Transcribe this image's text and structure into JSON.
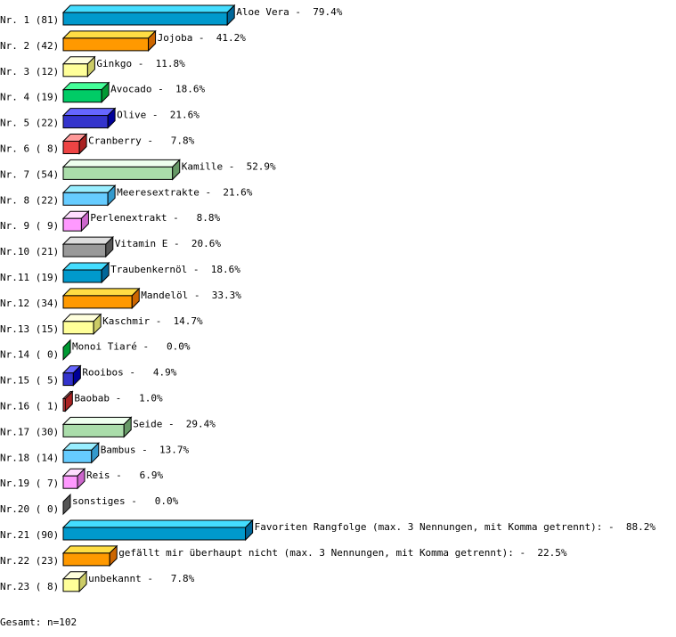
{
  "chart_data": {
    "type": "bar",
    "orientation": "horizontal",
    "style": "3d",
    "unit": "%",
    "xlim": [
      0,
      100
    ],
    "grid": false,
    "rows": [
      {
        "row_label": "Nr. 1 (81)",
        "category": "Aloe Vera",
        "count": 81,
        "value": 79.4
      },
      {
        "row_label": "Nr. 2 (42)",
        "category": "Jojoba",
        "count": 42,
        "value": 41.2
      },
      {
        "row_label": "Nr. 3 (12)",
        "category": "Ginkgo",
        "count": 12,
        "value": 11.8
      },
      {
        "row_label": "Nr. 4 (19)",
        "category": "Avocado",
        "count": 19,
        "value": 18.6
      },
      {
        "row_label": "Nr. 5 (22)",
        "category": "Olive",
        "count": 22,
        "value": 21.6
      },
      {
        "row_label": "Nr. 6 ( 8)",
        "category": "Cranberry",
        "count": 8,
        "value": 7.8
      },
      {
        "row_label": "Nr. 7 (54)",
        "category": "Kamille",
        "count": 54,
        "value": 52.9
      },
      {
        "row_label": "Nr. 8 (22)",
        "category": "Meeresextrakte",
        "count": 22,
        "value": 21.6
      },
      {
        "row_label": "Nr. 9 ( 9)",
        "category": "Perlenextrakt",
        "count": 9,
        "value": 8.8
      },
      {
        "row_label": "Nr.10 (21)",
        "category": "Vitamin E",
        "count": 21,
        "value": 20.6
      },
      {
        "row_label": "Nr.11 (19)",
        "category": "Traubenkernöl",
        "count": 19,
        "value": 18.6
      },
      {
        "row_label": "Nr.12 (34)",
        "category": "Mandelöl",
        "count": 34,
        "value": 33.3
      },
      {
        "row_label": "Nr.13 (15)",
        "category": "Kaschmir",
        "count": 15,
        "value": 14.7
      },
      {
        "row_label": "Nr.14 ( 0)",
        "category": "Monoi Tiaré",
        "count": 0,
        "value": 0.0
      },
      {
        "row_label": "Nr.15 ( 5)",
        "category": "Rooibos",
        "count": 5,
        "value": 4.9
      },
      {
        "row_label": "Nr.16 ( 1)",
        "category": "Baobab",
        "count": 1,
        "value": 1.0
      },
      {
        "row_label": "Nr.17 (30)",
        "category": "Seide",
        "count": 30,
        "value": 29.4
      },
      {
        "row_label": "Nr.18 (14)",
        "category": "Bambus",
        "count": 14,
        "value": 13.7
      },
      {
        "row_label": "Nr.19 ( 7)",
        "category": "Reis",
        "count": 7,
        "value": 6.9
      },
      {
        "row_label": "Nr.20 ( 0)",
        "category": "sonstiges",
        "count": 0,
        "value": 0.0
      },
      {
        "row_label": "Nr.21 (90)",
        "category": "Favoriten Rangfolge (max. 3 Nennungen, mit Komma getrennt):",
        "count": 90,
        "value": 88.2
      },
      {
        "row_label": "Nr.22 (23)",
        "category": "gefällt mir überhaupt nicht (max. 3 Nennungen, mit Komma getrennt):",
        "count": 23,
        "value": 22.5
      },
      {
        "row_label": "Nr.23 ( 8)",
        "category": "unbekannt",
        "count": 8,
        "value": 7.8
      }
    ],
    "palette": [
      {
        "front": "#0099cc",
        "top": "#44ddff",
        "side": "#006699"
      },
      {
        "front": "#ff9900",
        "top": "#ffdd44",
        "side": "#cc6600"
      },
      {
        "front": "#ffff99",
        "top": "#ffffdd",
        "side": "#cccc66"
      },
      {
        "front": "#00cc66",
        "top": "#44ff99",
        "side": "#009933"
      },
      {
        "front": "#3333cc",
        "top": "#6666ff",
        "side": "#000099"
      },
      {
        "front": "#ee4444",
        "top": "#ff9999",
        "side": "#aa2222"
      },
      {
        "front": "#aaddaa",
        "top": "#eeffee",
        "side": "#669966"
      },
      {
        "front": "#66ccff",
        "top": "#99eeff",
        "side": "#3399cc"
      },
      {
        "front": "#ff99ff",
        "top": "#ffddff",
        "side": "#cc66cc"
      },
      {
        "front": "#999999",
        "top": "#dddddd",
        "side": "#555555"
      }
    ]
  },
  "footer": {
    "total": "Gesamt: n=102"
  }
}
